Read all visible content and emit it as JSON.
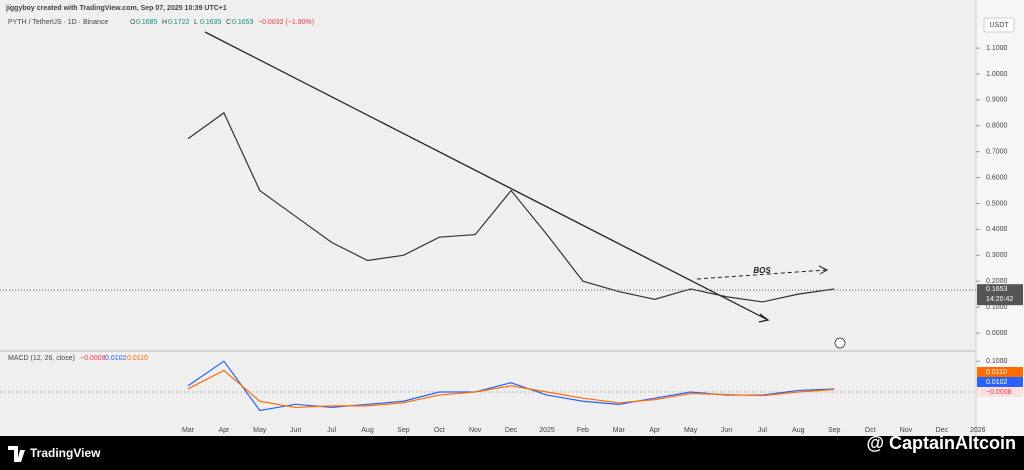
{
  "header": {
    "credit": "jiggyboy created with TradingView.com, Sep 07, 2025 10:39 UTC+1"
  },
  "chart_data": [
    {
      "type": "line",
      "title": "PYTH / TetherUS · 1D · Binance",
      "ohlc": [
        {
          "label": "O",
          "value": "0.1685"
        },
        {
          "label": "H",
          "value": "0.1722"
        },
        {
          "label": "L",
          "value": "0.1635"
        },
        {
          "label": "C",
          "value": "0.1653"
        }
      ],
      "change": "−0.0032 (−1.90%)",
      "y_axis_label": "USDT",
      "categories": [
        "Mar",
        "Apr",
        "May",
        "Jun",
        "Jul",
        "Aug",
        "Sep",
        "Oct",
        "Nov",
        "Dec",
        "2025",
        "Feb",
        "Mar",
        "Apr",
        "May",
        "Jun",
        "Jul",
        "Aug",
        "Sep",
        "Oct",
        "Nov",
        "Dec",
        "2026"
      ],
      "values": [
        0.75,
        0.85,
        0.55,
        0.45,
        0.35,
        0.28,
        0.3,
        0.37,
        0.38,
        0.55,
        0.38,
        0.2,
        0.16,
        0.13,
        0.17,
        0.14,
        0.12,
        0.15,
        0.17,
        null,
        null,
        null,
        null
      ],
      "color": "#333333",
      "ylim": [
        -0.066,
        1.17
      ],
      "yticks": [
        {
          "value": 0,
          "label": "0.0000"
        },
        {
          "value": 0.1,
          "label": "0.1000"
        },
        {
          "value": 0.2,
          "label": "0.2000"
        },
        {
          "value": 0.3,
          "label": "0.3000"
        },
        {
          "value": 0.4,
          "label": "0.4000"
        },
        {
          "value": 0.5,
          "label": "0.5000"
        },
        {
          "value": 0.6,
          "label": "0.6000"
        },
        {
          "value": 0.7,
          "label": "0.7000"
        },
        {
          "value": 0.8,
          "label": "0.8000"
        },
        {
          "value": 0.9,
          "label": "0.9000"
        },
        {
          "value": 1,
          "label": "1.0000"
        },
        {
          "value": 1.1,
          "label": "1.1000"
        }
      ],
      "current_price": {
        "value": 0.1653,
        "label": "0.1653"
      },
      "countdown": "14:20:42",
      "annotation": "BOS"
    },
    {
      "type": "line",
      "title": "MACD (12, 26, close)",
      "histogram_last": "−0.0008",
      "series": [
        {
          "color": "#2962ff",
          "last": "0.0102",
          "values": [
            0.02,
            0.1,
            -0.06,
            -0.04,
            -0.05,
            -0.04,
            -0.03,
            0.0,
            0.0,
            0.03,
            -0.01,
            -0.03,
            -0.04,
            -0.02,
            0.0,
            -0.01,
            -0.01,
            0.005,
            0.01,
            null,
            null,
            null,
            null
          ]
        },
        {
          "color": "#ff6d00",
          "last": "0.0110",
          "values": [
            0.01,
            0.07,
            -0.03,
            -0.05,
            -0.045,
            -0.045,
            -0.035,
            -0.01,
            0.0,
            0.02,
            0.0,
            -0.02,
            -0.035,
            -0.025,
            -0.005,
            -0.008,
            -0.012,
            0.0,
            0.008,
            null,
            null,
            null,
            null
          ]
        }
      ],
      "ylim": [
        -0.12,
        0.12
      ],
      "yticks": [
        {
          "value": 0.1,
          "label": "0.1000"
        }
      ]
    }
  ],
  "footer": {
    "brand": "TradingView",
    "watermark": "@ CaptainAltcoin"
  }
}
